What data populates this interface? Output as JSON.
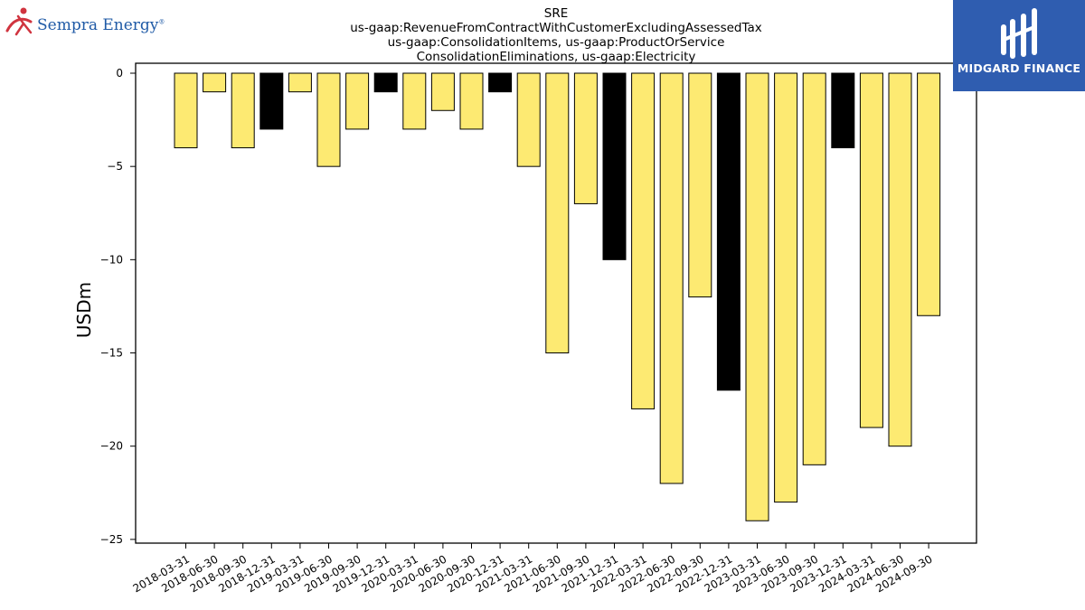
{
  "header": {
    "title_lines": [
      "SRE",
      "us-gaap:RevenueFromContractWithCustomerExcludingAssessedTax",
      "us-gaap:ConsolidationItems, us-gaap:ProductOrService",
      "ConsolidationEliminations, us-gaap:Electricity"
    ]
  },
  "logos": {
    "left": {
      "text": "Sempra Energy",
      "mark": "®",
      "color": "#1f5aa6",
      "icon": "runner-swoosh-icon",
      "icon_color": "#d0343f"
    },
    "right": {
      "text": "MIDGARD FINANCE",
      "background": "#2f5db0",
      "icon": "midgard-monogram-icon"
    }
  },
  "colors": {
    "bar_default": "#fdea72",
    "bar_annual": "#000000",
    "bar_edge": "#000000"
  },
  "chart_data": {
    "type": "bar",
    "ylabel": "USDm",
    "xlabel": "",
    "ylim": [
      -25.2,
      0
    ],
    "yticks": [
      0,
      -5,
      -10,
      -15,
      -20,
      -25
    ],
    "ytick_labels": [
      "0",
      "−5",
      "−10",
      "−15",
      "−20",
      "−25"
    ],
    "grid": false,
    "categories": [
      "2018-03-31",
      "2018-06-30",
      "2018-09-30",
      "2018-12-31",
      "2019-03-31",
      "2019-06-30",
      "2019-09-30",
      "2019-12-31",
      "2020-03-31",
      "2020-06-30",
      "2020-09-30",
      "2020-12-31",
      "2021-03-31",
      "2021-06-30",
      "2021-09-30",
      "2021-12-31",
      "2022-03-31",
      "2022-06-30",
      "2022-09-30",
      "2022-12-31",
      "2023-03-31",
      "2023-06-30",
      "2023-09-30",
      "2023-12-31",
      "2024-03-31",
      "2024-06-30",
      "2024-09-30"
    ],
    "values": [
      -4,
      -1,
      -4,
      -3,
      -1,
      -5,
      -3,
      -1,
      -3,
      -2,
      -3,
      -1,
      -5,
      -15,
      -7,
      -10,
      -18,
      -22,
      -12,
      -17,
      -24,
      -23,
      -21,
      -4,
      -19,
      -20,
      -13
    ],
    "highlight": [
      false,
      false,
      false,
      true,
      false,
      false,
      false,
      true,
      false,
      false,
      false,
      true,
      false,
      false,
      false,
      true,
      false,
      false,
      false,
      true,
      false,
      false,
      false,
      true,
      false,
      false,
      false
    ]
  }
}
